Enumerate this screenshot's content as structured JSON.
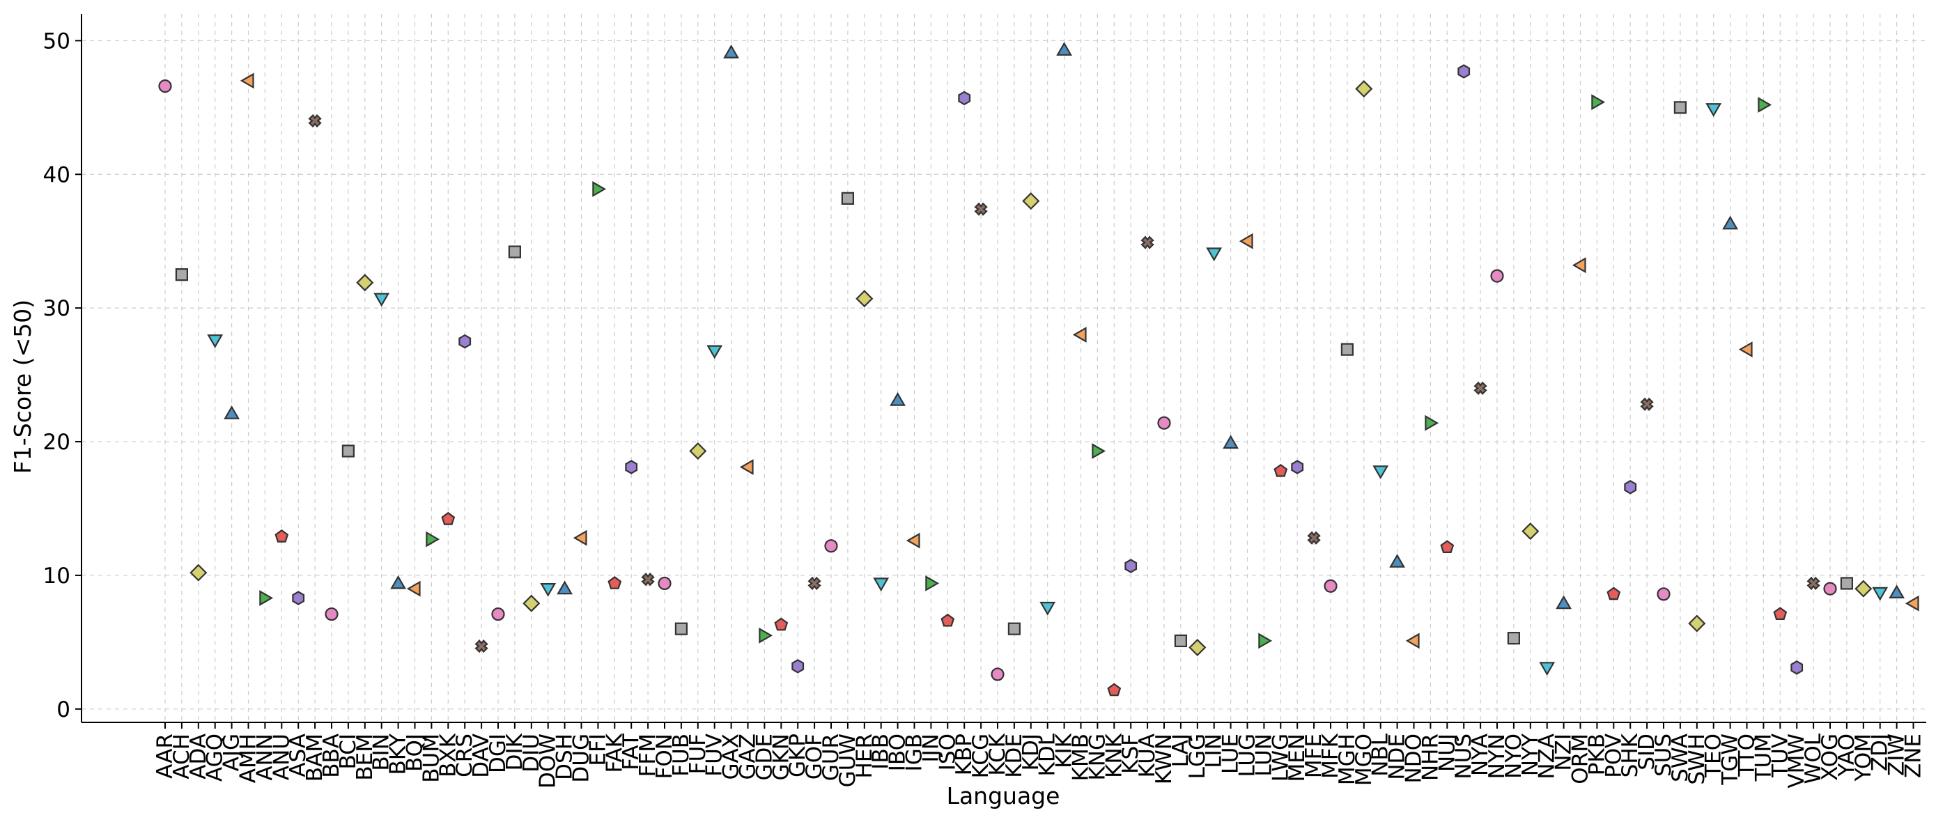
{
  "chart_data": {
    "type": "scatter",
    "title": "",
    "xlabel": "Language",
    "ylabel": "F1-Score (<50)",
    "ylim": [
      -1,
      52
    ],
    "yticks": [
      0,
      10,
      20,
      30,
      40,
      50
    ],
    "grid": true,
    "marker_cycle": [
      "circle",
      "square",
      "diamond",
      "triangle-down",
      "triangle-up",
      "triangle-left",
      "triangle-right",
      "pentagon",
      "hexagon",
      "x"
    ],
    "color_cycle": [
      "#e78ac3",
      "#a9a9a9",
      "#d5d070",
      "#4fc3d6",
      "#4f8fc0",
      "#f2a35e",
      "#4caf50",
      "#e35d5b",
      "#9b7fd1",
      "#8d6e63"
    ],
    "points": [
      {
        "x": "AAR",
        "y": 46.6
      },
      {
        "x": "ACH",
        "y": 32.5
      },
      {
        "x": "ADA",
        "y": 10.2
      },
      {
        "x": "AGQ",
        "y": 27.6
      },
      {
        "x": "AJG",
        "y": 22.1
      },
      {
        "x": "AMH",
        "y": 47.0
      },
      {
        "x": "ANN",
        "y": 8.3
      },
      {
        "x": "ANU",
        "y": 12.9
      },
      {
        "x": "ASA",
        "y": 8.3
      },
      {
        "x": "BAM",
        "y": 44.0
      },
      {
        "x": "BBA",
        "y": 7.1
      },
      {
        "x": "BCI",
        "y": 19.3
      },
      {
        "x": "BEM",
        "y": 31.9
      },
      {
        "x": "BIN",
        "y": 30.7
      },
      {
        "x": "BKY",
        "y": 9.4
      },
      {
        "x": "BQJ",
        "y": 9.0
      },
      {
        "x": "BUM",
        "y": 12.7
      },
      {
        "x": "BXK",
        "y": 14.2
      },
      {
        "x": "CRS",
        "y": 27.5
      },
      {
        "x": "DAV",
        "y": 4.7
      },
      {
        "x": "DGI",
        "y": 7.1
      },
      {
        "x": "DIK",
        "y": 34.2
      },
      {
        "x": "DIU",
        "y": 7.9
      },
      {
        "x": "DOW",
        "y": 9.0
      },
      {
        "x": "DSH",
        "y": 9.0
      },
      {
        "x": "DUG",
        "y": 12.8
      },
      {
        "x": "EFI",
        "y": 38.9
      },
      {
        "x": "FAK",
        "y": 9.4
      },
      {
        "x": "FAT",
        "y": 18.1
      },
      {
        "x": "FFM",
        "y": 9.7
      },
      {
        "x": "FON",
        "y": 9.4
      },
      {
        "x": "FUB",
        "y": 6.0
      },
      {
        "x": "FUF",
        "y": 19.3
      },
      {
        "x": "FUV",
        "y": 26.8
      },
      {
        "x": "GAX",
        "y": 49.1
      },
      {
        "x": "GAZ",
        "y": 18.1
      },
      {
        "x": "GDE",
        "y": 5.5
      },
      {
        "x": "GKN",
        "y": 6.3
      },
      {
        "x": "GKP",
        "y": 3.2
      },
      {
        "x": "GOF",
        "y": 9.4
      },
      {
        "x": "GUR",
        "y": 12.2
      },
      {
        "x": "GUW",
        "y": 38.2
      },
      {
        "x": "HER",
        "y": 30.7
      },
      {
        "x": "IBB",
        "y": 9.4
      },
      {
        "x": "IBO",
        "y": 23.1
      },
      {
        "x": "IGB",
        "y": 12.6
      },
      {
        "x": "IJN",
        "y": 9.4
      },
      {
        "x": "ISO",
        "y": 6.6
      },
      {
        "x": "KBP",
        "y": 45.7
      },
      {
        "x": "KCG",
        "y": 37.4
      },
      {
        "x": "KCK",
        "y": 2.6
      },
      {
        "x": "KDE",
        "y": 6.0
      },
      {
        "x": "KDJ",
        "y": 38.0
      },
      {
        "x": "KDL",
        "y": 7.6
      },
      {
        "x": "KIK",
        "y": 49.3
      },
      {
        "x": "KMB",
        "y": 28.0
      },
      {
        "x": "KNG",
        "y": 19.3
      },
      {
        "x": "KNK",
        "y": 1.4
      },
      {
        "x": "KSF",
        "y": 10.7
      },
      {
        "x": "KUA",
        "y": 34.9
      },
      {
        "x": "KWN",
        "y": 21.4
      },
      {
        "x": "LAJ",
        "y": 5.1
      },
      {
        "x": "LGG",
        "y": 4.6
      },
      {
        "x": "LIN",
        "y": 34.1
      },
      {
        "x": "LUE",
        "y": 19.9
      },
      {
        "x": "LUG",
        "y": 35.0
      },
      {
        "x": "LUN",
        "y": 5.1
      },
      {
        "x": "LWG",
        "y": 17.8
      },
      {
        "x": "MEN",
        "y": 18.1
      },
      {
        "x": "MFE",
        "y": 12.8
      },
      {
        "x": "MFK",
        "y": 9.2
      },
      {
        "x": "MGH",
        "y": 26.9
      },
      {
        "x": "MGO",
        "y": 46.4
      },
      {
        "x": "NBL",
        "y": 17.8
      },
      {
        "x": "NDE",
        "y": 11.0
      },
      {
        "x": "NDO",
        "y": 5.1
      },
      {
        "x": "NHR",
        "y": 21.4
      },
      {
        "x": "NUJ",
        "y": 12.1
      },
      {
        "x": "NUS",
        "y": 47.7
      },
      {
        "x": "NYA",
        "y": 24.0
      },
      {
        "x": "NYN",
        "y": 32.4
      },
      {
        "x": "NYO",
        "y": 5.3
      },
      {
        "x": "NYY",
        "y": 13.3
      },
      {
        "x": "NZA",
        "y": 3.1
      },
      {
        "x": "NZI",
        "y": 7.9
      },
      {
        "x": "ORM",
        "y": 33.2
      },
      {
        "x": "PKB",
        "y": 45.4
      },
      {
        "x": "POV",
        "y": 8.6
      },
      {
        "x": "SHK",
        "y": 16.6
      },
      {
        "x": "SID",
        "y": 22.8
      },
      {
        "x": "SUS",
        "y": 8.6
      },
      {
        "x": "SWA",
        "y": 45.0
      },
      {
        "x": "SWH",
        "y": 6.4
      },
      {
        "x": "TEO",
        "y": 44.9
      },
      {
        "x": "TGW",
        "y": 36.3
      },
      {
        "x": "TTQ",
        "y": 26.9
      },
      {
        "x": "TUM",
        "y": 45.2
      },
      {
        "x": "TUV",
        "y": 7.1
      },
      {
        "x": "VMW",
        "y": 3.1
      },
      {
        "x": "WOL",
        "y": 9.4
      },
      {
        "x": "XOG",
        "y": 9.0
      },
      {
        "x": "YAO",
        "y": 9.4
      },
      {
        "x": "YOM",
        "y": 9.0
      },
      {
        "x": "ZDJ",
        "y": 8.7
      },
      {
        "x": "ZIW",
        "y": 8.7
      },
      {
        "x": "ZNE",
        "y": 7.9
      }
    ]
  }
}
